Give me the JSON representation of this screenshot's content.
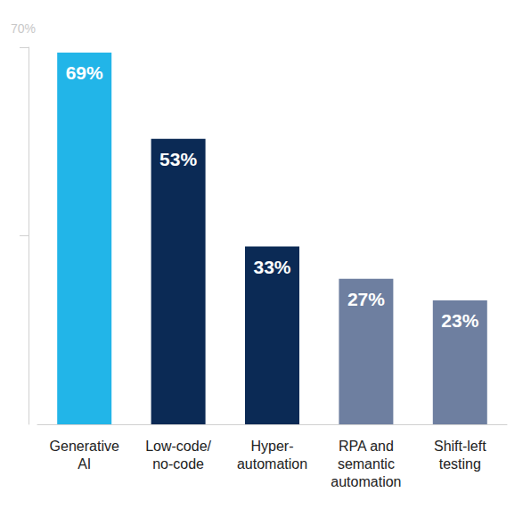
{
  "chart_data": {
    "type": "bar",
    "categories": [
      "Generative\nAI",
      "Low-code/\nno-code",
      "Hyper-\nautomation",
      "RPA and\nsemantic\nautomation",
      "Shift-left\ntesting"
    ],
    "values": [
      69,
      53,
      33,
      27,
      23
    ],
    "value_labels": [
      "69%",
      "53%",
      "33%",
      "27%",
      "23%"
    ],
    "colors": [
      "#22b5e8",
      "#0b2a55",
      "#0b2a55",
      "#6e7fa0",
      "#6e7fa0"
    ],
    "ylim": [
      0,
      70
    ],
    "yticks": [
      {
        "value": 35,
        "label": null
      },
      {
        "value": 70,
        "label": "70%"
      }
    ],
    "grid": false,
    "data_labels": true
  }
}
